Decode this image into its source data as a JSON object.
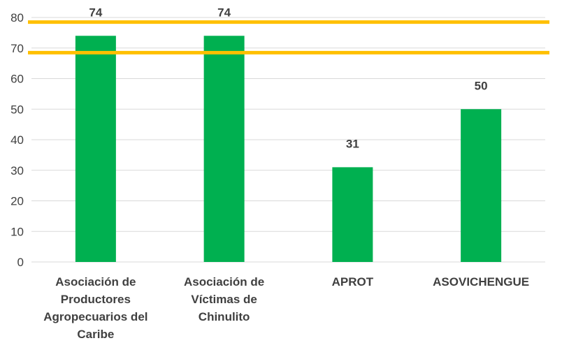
{
  "chart_data": {
    "type": "bar",
    "categories": [
      [
        "Asociación de",
        "Productores",
        "Agropecuarios del",
        "Caribe"
      ],
      [
        "Asociación de",
        "Víctimas de",
        "Chinulito"
      ],
      [
        "APROT"
      ],
      [
        "ASOVICHENGUE"
      ]
    ],
    "values": [
      74,
      74,
      31,
      50
    ],
    "data_labels": [
      "74",
      "74",
      "31",
      "50"
    ],
    "y_ticks": [
      "0",
      "10",
      "20",
      "30",
      "40",
      "50",
      "60",
      "70",
      "80"
    ],
    "ylim": [
      0,
      80
    ],
    "reference_lines": [
      78.5,
      68.5
    ],
    "grid": true,
    "bar_color": "#00b050",
    "reference_line_color": "#ffc000",
    "gridline_color": "#d9d9d9",
    "title": "",
    "xlabel": "",
    "ylabel": ""
  }
}
